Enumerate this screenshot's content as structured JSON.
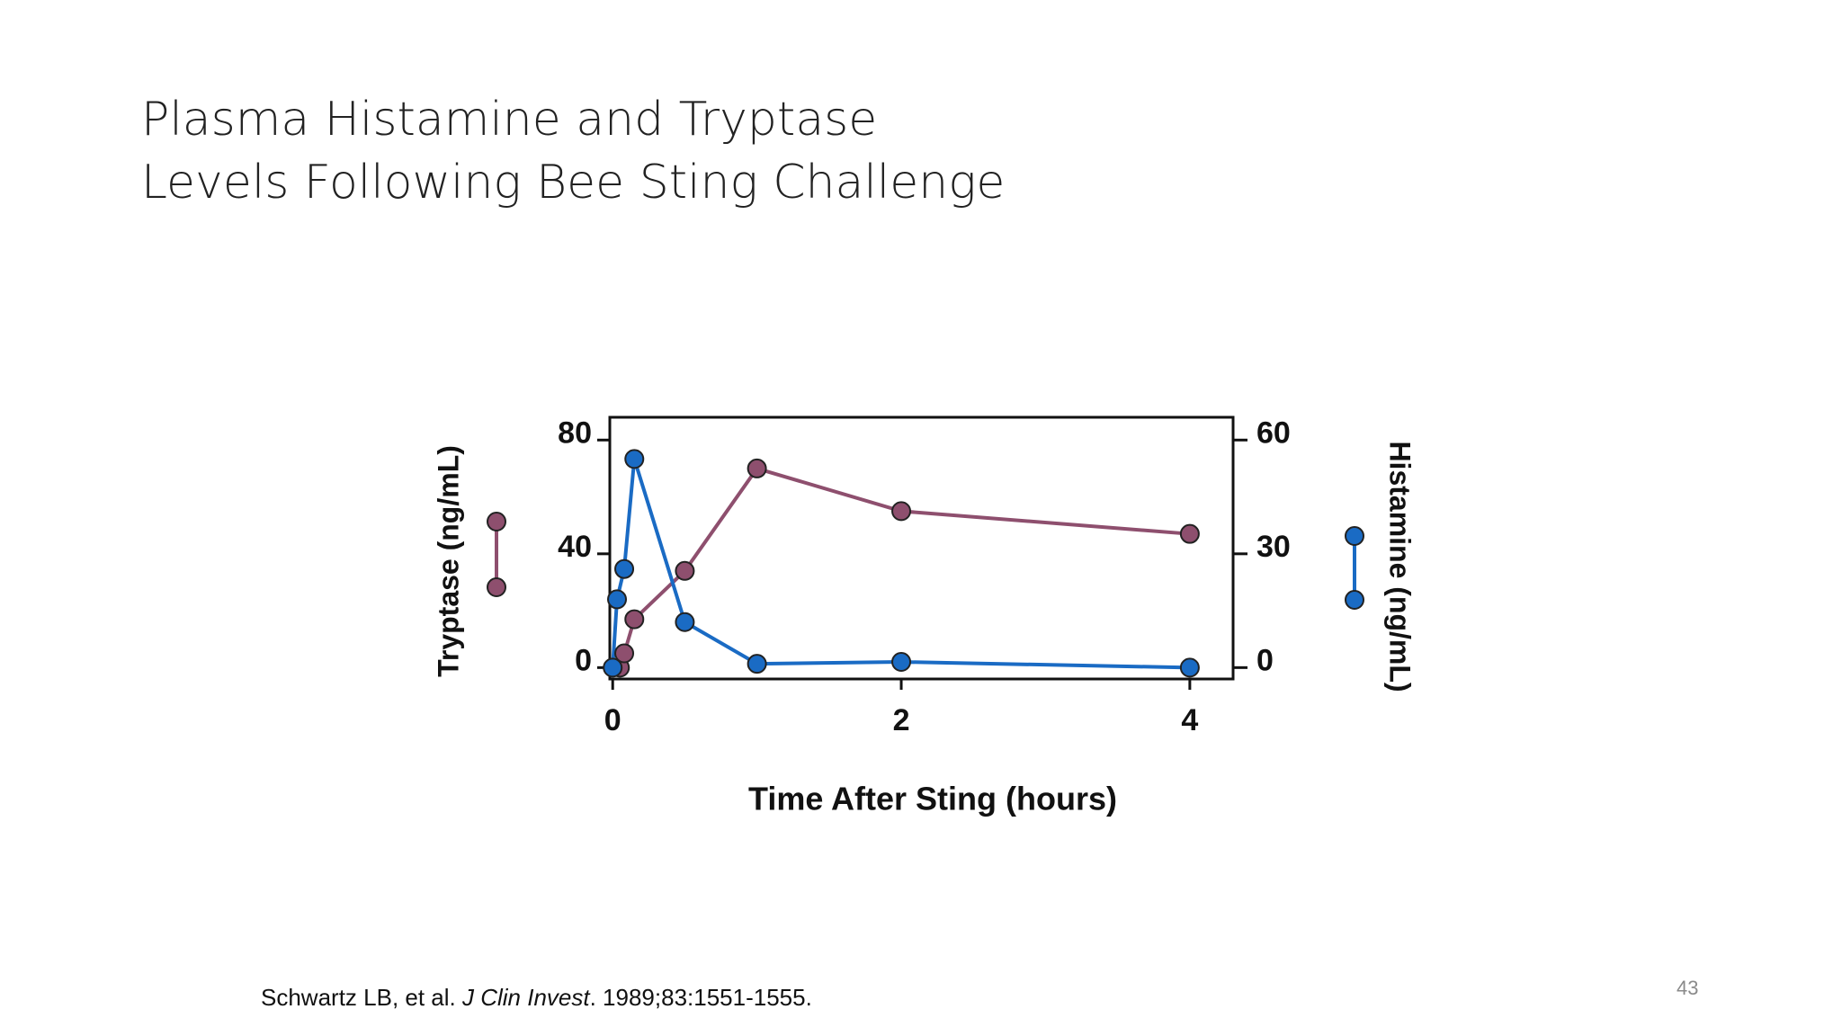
{
  "title_lines": [
    "Plasma Histamine and Tryptase",
    "Levels Following Bee Sting Challenge"
  ],
  "chart_data": {
    "type": "line",
    "xlabel": "Time After Sting (hours)",
    "xlim": [
      -0.02,
      4.3
    ],
    "xticks": [
      0,
      2,
      4
    ],
    "ylim": [
      -4,
      88
    ],
    "yticks": [
      0,
      40,
      80
    ],
    "y2lim": [
      -3,
      66
    ],
    "y2ticks": [
      0,
      30,
      60
    ],
    "series": [
      {
        "name": "Tryptase (ng/mL)",
        "color": "#8e4f6e",
        "axis": "y",
        "x": [
          0.05,
          0.08,
          0.15,
          0.5,
          1,
          2,
          4
        ],
        "values": [
          0,
          5,
          17,
          34,
          70,
          55,
          47
        ]
      },
      {
        "name": "Histamine (ng/mL)",
        "color": "#1a6bc4",
        "axis": "y2",
        "x": [
          0,
          0.03,
          0.08,
          0.15,
          0.5,
          1,
          2,
          4
        ],
        "values": [
          0,
          18,
          26,
          55,
          12,
          1,
          1.5,
          0
        ]
      }
    ]
  },
  "citation": {
    "authors": "Schwartz LB, et al.",
    "journal": "J Clin Invest",
    "rest": ". 1989;83:1551-1555."
  },
  "page_number": "43"
}
